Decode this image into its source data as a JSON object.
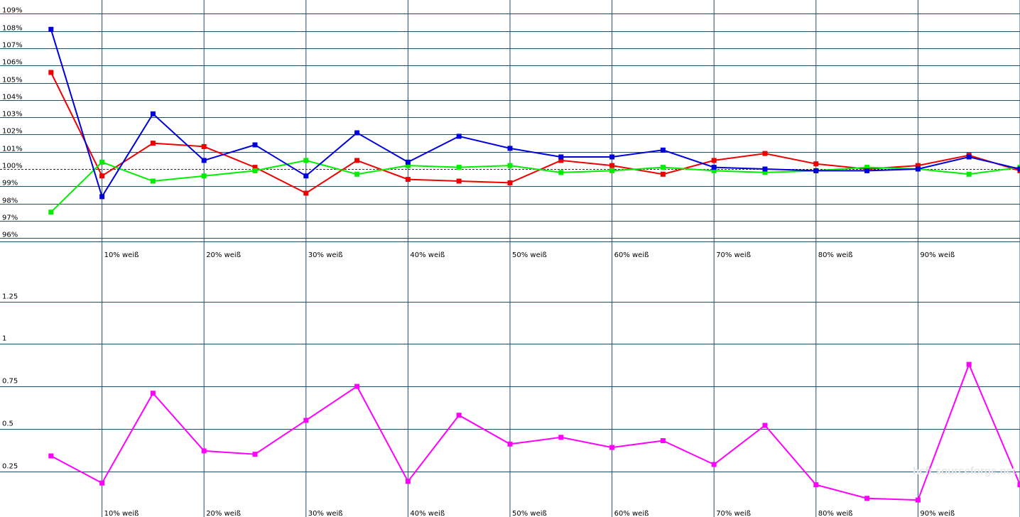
{
  "watermark": "hcfr.sourceforge.net",
  "colors": {
    "grid": "#1f4e6a",
    "red": "#ee0000",
    "green": "#00ee00",
    "blue": "#0000dd",
    "magenta": "#ff00ff"
  },
  "chart_data": [
    {
      "type": "line",
      "y_tick_labels": [
        "109%",
        "108%",
        "107%",
        "106%",
        "105%",
        "104%",
        "103%",
        "102%",
        "101%",
        "100%",
        "99%",
        "98%",
        "97%",
        "96%"
      ],
      "category_labels": [
        "10% weiß",
        "20% weiß",
        "30% weiß",
        "40% weiß",
        "50% weiß",
        "60% weiß",
        "70% weiß",
        "80% weiß",
        "90% weiß"
      ],
      "ylim": [
        95.8,
        109.8
      ],
      "reference_line": 100,
      "x": [
        0.5,
        1,
        1.5,
        2,
        2.5,
        3,
        3.5,
        4,
        4.5,
        5,
        5.5,
        6,
        6.5,
        7,
        7.5,
        8,
        8.5,
        9,
        9.5,
        10
      ],
      "series": [
        {
          "color": "red",
          "values": [
            105.6,
            99.6,
            101.5,
            101.3,
            100.1,
            98.6,
            100.5,
            99.4,
            99.3,
            99.2,
            100.5,
            100.2,
            99.7,
            100.5,
            100.9,
            100.3,
            100.0,
            100.2,
            100.8,
            99.9
          ]
        },
        {
          "color": "green",
          "values": [
            97.5,
            100.4,
            99.3,
            99.6,
            99.9,
            100.5,
            99.7,
            100.2,
            100.1,
            100.2,
            99.8,
            99.9,
            100.1,
            99.9,
            99.8,
            99.9,
            100.1,
            100.0,
            99.7,
            100.1
          ]
        },
        {
          "color": "blue",
          "values": [
            108.1,
            98.4,
            103.2,
            100.5,
            101.4,
            99.6,
            102.1,
            100.4,
            101.9,
            101.2,
            100.7,
            100.7,
            101.1,
            100.1,
            100.0,
            99.9,
            99.9,
            100.0,
            100.7,
            100.0
          ]
        }
      ]
    },
    {
      "type": "line",
      "y_tick_labels": [
        "1.25",
        "1",
        "0.75",
        "0.5",
        "0.25"
      ],
      "category_labels": [
        "10% weiß",
        "20% weiß",
        "30% weiß",
        "40% weiß",
        "50% weiß",
        "60% weiß",
        "70% weiß",
        "80% weiß",
        "90% weiß"
      ],
      "ylim": [
        -0.02,
        1.5
      ],
      "x": [
        0.5,
        1,
        1.5,
        2,
        2.5,
        3,
        3.5,
        4,
        4.5,
        5,
        5.5,
        6,
        6.5,
        7,
        7.5,
        8,
        8.5,
        9,
        9.5,
        10
      ],
      "series": [
        {
          "color": "magenta",
          "values": [
            0.34,
            0.18,
            0.71,
            0.37,
            0.35,
            0.55,
            0.75,
            0.19,
            0.58,
            0.41,
            0.45,
            0.39,
            0.43,
            0.29,
            0.52,
            0.17,
            0.09,
            0.08,
            0.88,
            0.17
          ]
        }
      ]
    }
  ]
}
